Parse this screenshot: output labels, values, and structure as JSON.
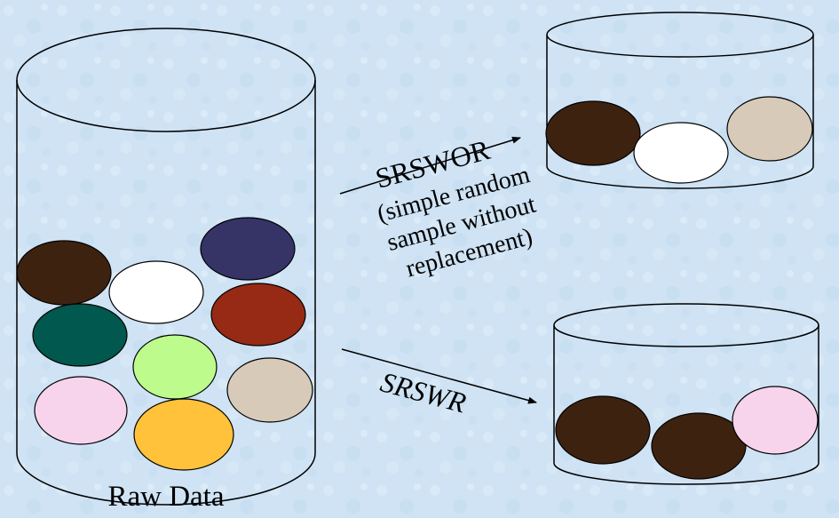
{
  "raw_data_label": "Raw Data",
  "srswor_label": "SRSWOR",
  "srswor_description_lines": [
    "(simple random",
    "sample without",
    "replacement)"
  ],
  "srswr_label": "SRSWR",
  "colors": {
    "background": "#cfe3f4",
    "dark_brown": "#3d2210",
    "white": "#ffffff",
    "navy": "#363466",
    "dark_teal": "#00584e",
    "rust": "#962a14",
    "light_green": "#bcfb8c",
    "tan": "#d8cab8",
    "pink": "#f8d4ec",
    "gold": "#ffc23a"
  },
  "raw_data_balls": [
    "dark_brown",
    "white",
    "navy",
    "dark_teal",
    "rust",
    "light_green",
    "tan",
    "pink",
    "gold"
  ],
  "srswor_sample": [
    "dark_brown",
    "white",
    "tan"
  ],
  "srswr_sample": [
    "dark_brown",
    "dark_brown",
    "pink"
  ]
}
